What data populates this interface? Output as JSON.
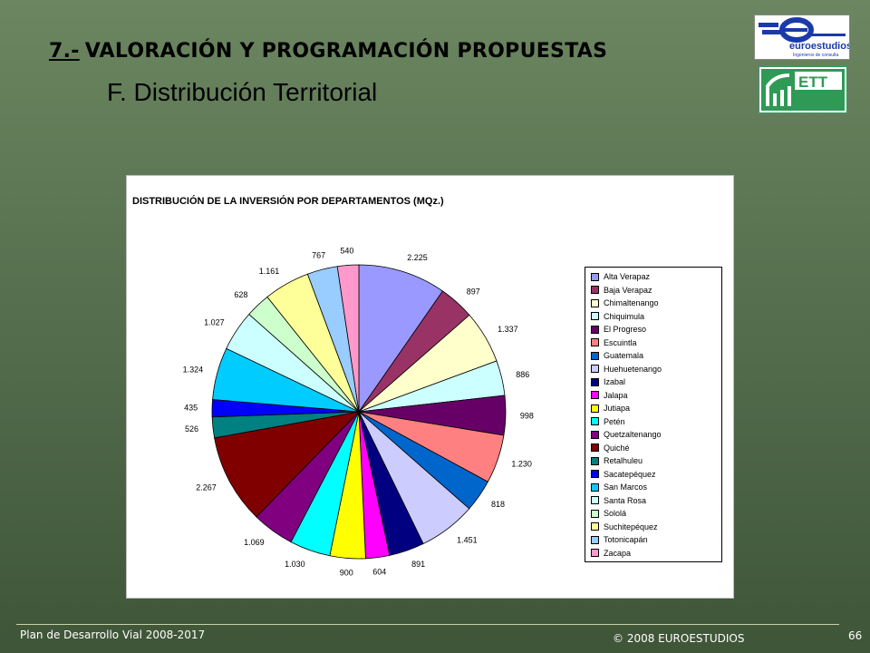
{
  "header": {
    "number": "7.-",
    "title": "VALORACIÓN Y PROGRAMACIÓN PROPUESTAS",
    "subtitle": "F.  Distribución Territorial"
  },
  "logos": {
    "euroestudios": {
      "text": "euroestudios",
      "tagline": "Ingenieros de consulta",
      "icon": "euroestudios-logo"
    },
    "ett": {
      "text": "ETT",
      "icon": "ett-logo"
    }
  },
  "chart_data": {
    "type": "pie",
    "title": "DISTRIBUCIÓN DE LA INVERSIÓN POR DEPARTAMENTOS (MQz.)",
    "legend_position": "right",
    "slices": [
      {
        "label": "Alta Verapaz",
        "value": 2225,
        "display": "2.225",
        "color": "#9999ff"
      },
      {
        "label": "Baja Verapaz",
        "value": 897,
        "display": "897",
        "color": "#993366"
      },
      {
        "label": "Chimaltenango",
        "value": 1337,
        "display": "1.337",
        "color": "#ffffcc"
      },
      {
        "label": "Chiquimula",
        "value": 886,
        "display": "886",
        "color": "#ccffff"
      },
      {
        "label": "El Progreso",
        "value": 998,
        "display": "998",
        "color": "#660066"
      },
      {
        "label": "Escuintla",
        "value": 1230,
        "display": "1.230",
        "color": "#ff8080"
      },
      {
        "label": "Guatemala",
        "value": 818,
        "display": "818",
        "color": "#0066cc"
      },
      {
        "label": "Huehuetenango",
        "value": 1451,
        "display": "1.451",
        "color": "#ccccff"
      },
      {
        "label": "Izabal",
        "value": 891,
        "display": "891",
        "color": "#000080"
      },
      {
        "label": "Jalapa",
        "value": 604,
        "display": "604",
        "color": "#ff00ff"
      },
      {
        "label": "Jutiapa",
        "value": 900,
        "display": "900",
        "color": "#ffff00"
      },
      {
        "label": "Petén",
        "value": 1030,
        "display": "1.030",
        "color": "#00ffff"
      },
      {
        "label": "Quetzaltenango",
        "value": 1069,
        "display": "1.069",
        "color": "#800080"
      },
      {
        "label": "Quiché",
        "value": 2267,
        "display": "2.267",
        "color": "#800000"
      },
      {
        "label": "Retalhuleu",
        "value": 526,
        "display": "526",
        "color": "#008080"
      },
      {
        "label": "Sacatepéquez",
        "value": 435,
        "display": "435",
        "color": "#0000ff"
      },
      {
        "label": "San Marcos",
        "value": 1324,
        "display": "1.324",
        "color": "#00ccff"
      },
      {
        "label": "Santa Rosa",
        "value": 1027,
        "display": "1.027",
        "color": "#ccffff"
      },
      {
        "label": "Sololá",
        "value": 628,
        "display": "628",
        "color": "#ccffcc"
      },
      {
        "label": "Suchitepéquez",
        "value": 1161,
        "display": "1.161",
        "color": "#ffff99"
      },
      {
        "label": "Totonicapán",
        "value": 767,
        "display": "767",
        "color": "#99ccff"
      },
      {
        "label": "Zacapa",
        "value": 540,
        "display": "540",
        "color": "#ff99cc"
      }
    ]
  },
  "footer": {
    "left": "Plan de Desarrollo Vial 2008-2017",
    "center": "© 2008 EUROESTUDIOS",
    "page": "66"
  }
}
